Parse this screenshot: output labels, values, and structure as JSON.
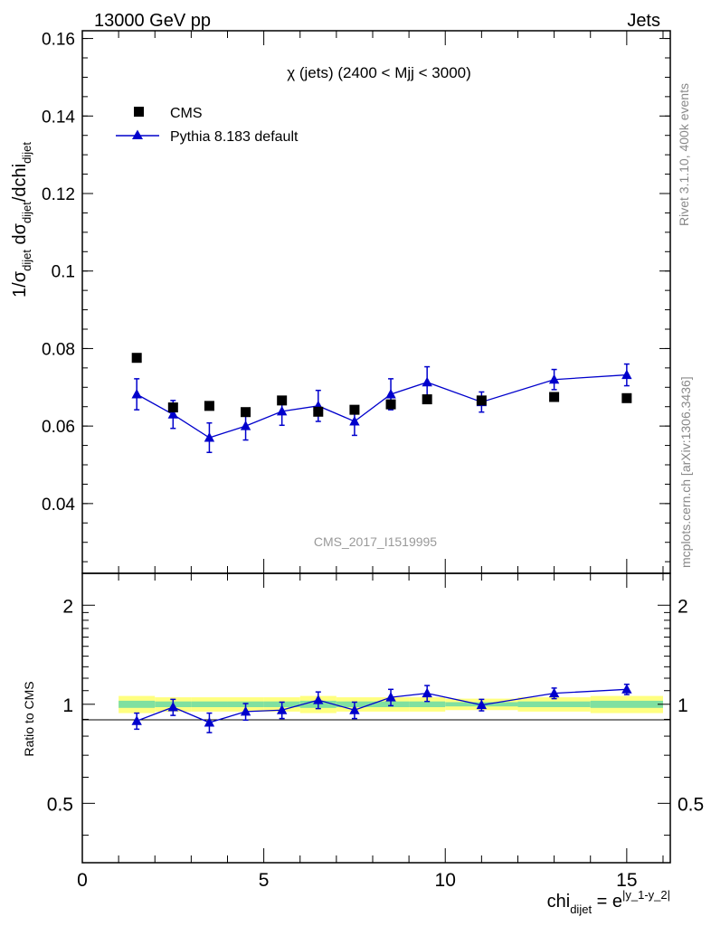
{
  "header": {
    "energy_label": "13000 GeV pp",
    "process_label": "Jets"
  },
  "side_labels": {
    "rivet": "Rivet 3.1.10,  400k events",
    "mcplots": "mcplots.cern.ch [arXiv:1306.3436]"
  },
  "chart_data": [
    {
      "type": "scatter",
      "panel": "main",
      "title": "χ (jets) (2400 < Mjj < 3000)",
      "watermark": "CMS_2017_I1519995",
      "ylabel": "1/σ_dijet dσ_dijet/dchi_dijet",
      "xlim": [
        0,
        16.2
      ],
      "ylim": [
        0.022,
        0.162
      ],
      "x_ticks": [
        0,
        5,
        10,
        15
      ],
      "y_ticks": [
        0.04,
        0.06,
        0.08,
        0.1,
        0.12,
        0.14,
        0.16
      ],
      "y_tick_labels": [
        "0.04",
        "0.06",
        "0.08",
        "0.1",
        "0.12",
        "0.14",
        "0.16"
      ],
      "legend": [
        {
          "label": "CMS",
          "marker": "square",
          "color": "#000000"
        },
        {
          "label": "Pythia 8.183 default",
          "marker": "triangle",
          "color": "#0000cc"
        }
      ],
      "series": [
        {
          "name": "CMS",
          "color": "#000000",
          "x": [
            1.5,
            2.5,
            3.5,
            4.5,
            5.5,
            6.5,
            7.5,
            8.5,
            9.5,
            11.0,
            13.0,
            15.0
          ],
          "y": [
            0.0776,
            0.0648,
            0.0652,
            0.0636,
            0.0666,
            0.0637,
            0.0642,
            0.0656,
            0.0669,
            0.0666,
            0.0675,
            0.0672
          ]
        },
        {
          "name": "Pythia 8.183 default",
          "color": "#0000cc",
          "x": [
            1.5,
            2.5,
            3.5,
            4.5,
            5.5,
            6.5,
            7.5,
            8.5,
            9.5,
            11.0,
            13.0,
            15.0
          ],
          "y": [
            0.0682,
            0.063,
            0.057,
            0.06,
            0.0638,
            0.0652,
            0.0612,
            0.0682,
            0.0713,
            0.0662,
            0.072,
            0.0732
          ],
          "yerr": [
            0.004,
            0.0036,
            0.0038,
            0.0036,
            0.0036,
            0.004,
            0.0036,
            0.004,
            0.004,
            0.0026,
            0.0026,
            0.0028
          ]
        }
      ]
    },
    {
      "type": "scatter",
      "panel": "ratio",
      "ylabel": "Ratio to CMS",
      "xlabel": "chi_dijet = e^|y_1-y_2|",
      "xlim": [
        0,
        16.2
      ],
      "ylim": [
        0.33,
        2.5
      ],
      "scale": "log",
      "x_ticks": [
        0,
        5,
        10,
        15
      ],
      "x_tick_labels": [
        "0",
        "5",
        "10",
        "15"
      ],
      "y_ticks": [
        0.5,
        1,
        2
      ],
      "y_tick_labels": [
        "0.5",
        "1",
        "2"
      ],
      "bands": {
        "x_edges": [
          1,
          2,
          3,
          4,
          5,
          6,
          7,
          8,
          9,
          10,
          12,
          14,
          16
        ],
        "outer_halfwidth": [
          0.06,
          0.05,
          0.05,
          0.05,
          0.05,
          0.06,
          0.05,
          0.05,
          0.05,
          0.04,
          0.05,
          0.06
        ],
        "inner_halfwidth": [
          0.025,
          0.02,
          0.02,
          0.02,
          0.02,
          0.025,
          0.02,
          0.02,
          0.02,
          0.015,
          0.02,
          0.025
        ],
        "outer_color": "#ffff80",
        "inner_color": "#80e0a0"
      },
      "series": [
        {
          "name": "Pythia 8.183 default",
          "color": "#0000cc",
          "x": [
            1.5,
            2.5,
            3.5,
            4.5,
            5.5,
            6.5,
            7.5,
            8.5,
            9.5,
            11.0,
            13.0,
            15.0
          ],
          "y": [
            0.89,
            0.98,
            0.88,
            0.95,
            0.96,
            1.03,
            0.96,
            1.05,
            1.08,
            0.995,
            1.08,
            1.11
          ],
          "yerr": [
            0.05,
            0.055,
            0.06,
            0.055,
            0.055,
            0.06,
            0.055,
            0.06,
            0.06,
            0.04,
            0.04,
            0.04
          ]
        }
      ]
    }
  ]
}
